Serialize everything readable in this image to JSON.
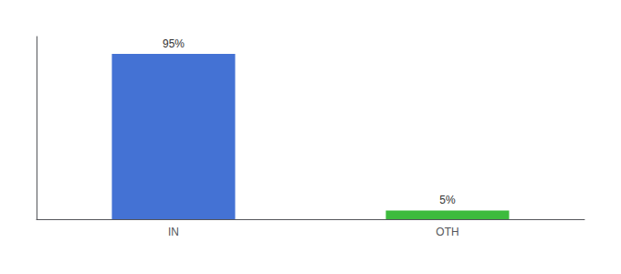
{
  "chart_data": {
    "type": "bar",
    "categories": [
      "IN",
      "OTH"
    ],
    "values": [
      95,
      5
    ],
    "value_labels": [
      "95%",
      "5%"
    ],
    "colors": [
      "#4472d4",
      "#3dbb3d"
    ],
    "ylim": [
      0,
      105
    ],
    "yticks": [],
    "grid": false,
    "data_labels": true,
    "tick_labels": "x"
  }
}
